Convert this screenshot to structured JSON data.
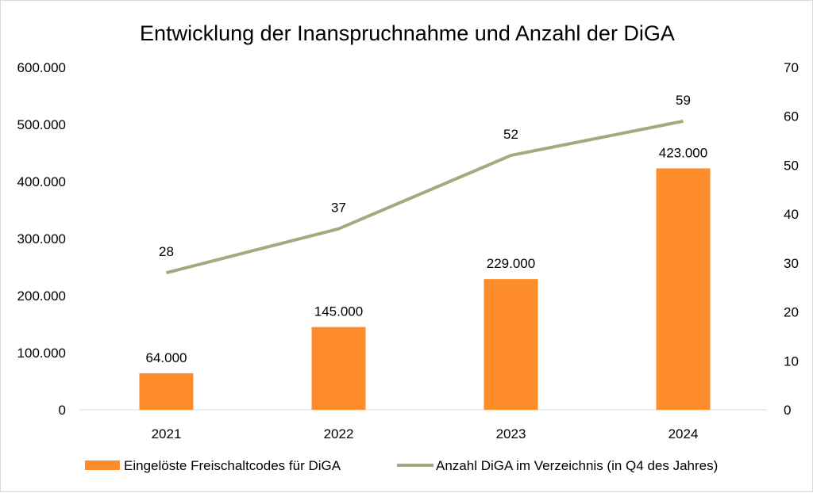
{
  "chart_data": {
    "type": "bar+line",
    "title": "Entwicklung der Inanspruchnahme und Anzahl der DiGA",
    "categories": [
      "2021",
      "2022",
      "2023",
      "2024"
    ],
    "series": [
      {
        "name": "Eingelöste Freischaltcodes für DiGA",
        "type": "bar",
        "axis": "left",
        "color": "#ff8c2a",
        "values": [
          64000,
          145000,
          229000,
          423000
        ],
        "labels": [
          "64.000",
          "145.000",
          "229.000",
          "423.000"
        ]
      },
      {
        "name": "Anzahl DiGA im Verzeichnis (in Q4 des Jahres)",
        "type": "line",
        "axis": "right",
        "color": "#a2ab80",
        "values": [
          28,
          37,
          52,
          59
        ],
        "labels": [
          "28",
          "37",
          "52",
          "59"
        ]
      }
    ],
    "y_left": {
      "range": [
        0,
        600000
      ],
      "ticks": [
        "0",
        "100.000",
        "200.000",
        "300.000",
        "400.000",
        "500.000",
        "600.000"
      ]
    },
    "y_right": {
      "range": [
        0,
        70
      ],
      "ticks": [
        "0",
        "10",
        "20",
        "30",
        "40",
        "50",
        "60",
        "70"
      ]
    },
    "grid": false,
    "legend": "bottom"
  }
}
